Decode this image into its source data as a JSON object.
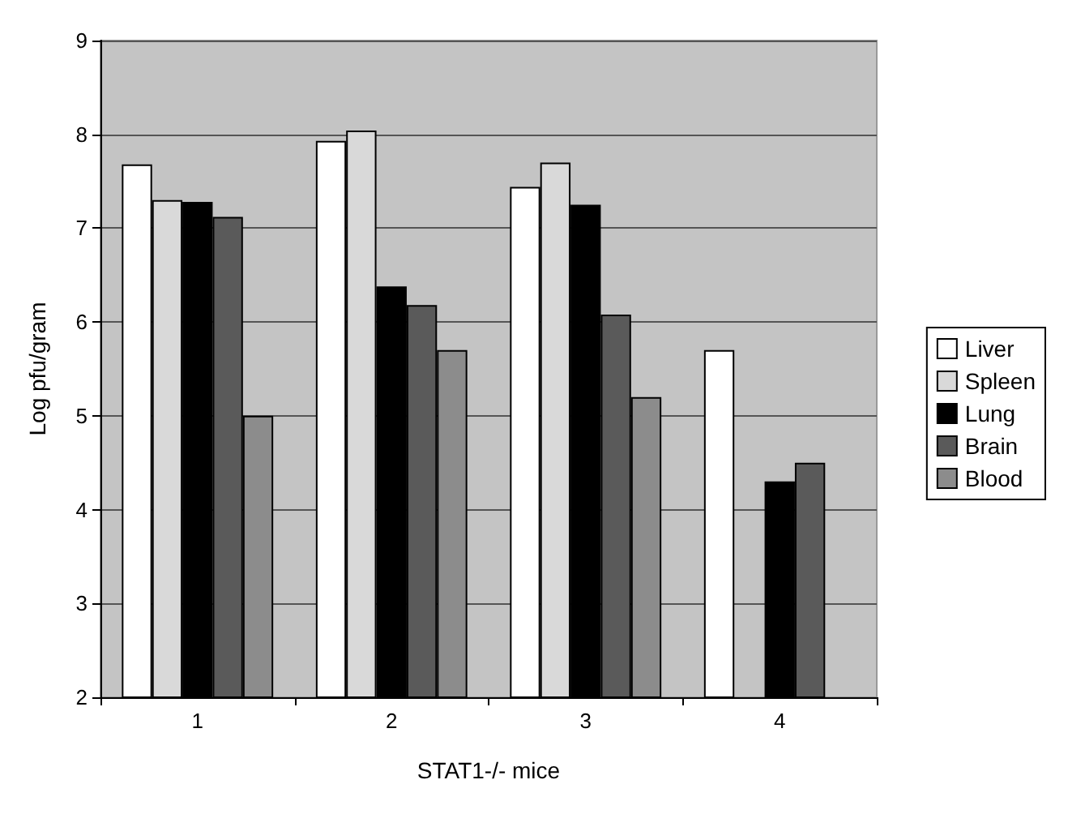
{
  "chart_data": {
    "type": "bar",
    "xlabel": "STAT1-/- mice",
    "ylabel": "Log pfu/gram",
    "categories": [
      "1",
      "2",
      "3",
      "4"
    ],
    "series": [
      {
        "name": "Liver",
        "color": "#ffffff",
        "values": [
          7.68,
          7.93,
          7.44,
          5.7
        ]
      },
      {
        "name": "Spleen",
        "color": "#d9d9d9",
        "values": [
          7.3,
          8.04,
          7.7,
          null
        ]
      },
      {
        "name": "Lung",
        "color": "#000000",
        "values": [
          7.28,
          6.38,
          7.25,
          4.3
        ]
      },
      {
        "name": "Brain",
        "color": "#5a5a5a",
        "values": [
          7.12,
          6.18,
          6.08,
          4.5
        ]
      },
      {
        "name": "Blood",
        "color": "#8c8c8c",
        "values": [
          5.0,
          5.7,
          5.2,
          null
        ]
      }
    ],
    "ylim": [
      2,
      9
    ],
    "yticks": [
      2,
      3,
      4,
      5,
      6,
      7,
      8,
      9
    ],
    "grid": "y",
    "legend": "right"
  }
}
